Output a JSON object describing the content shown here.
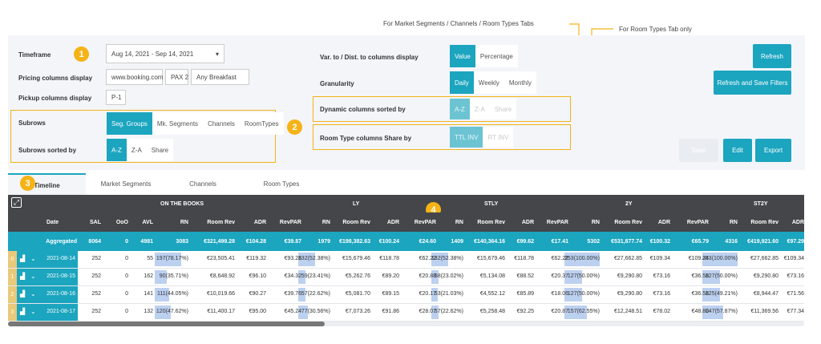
{
  "annotations": {
    "top": "For Market Segments / Channels / Room Types Tabs",
    "room_types_only": "For Room Types Tab only"
  },
  "markers": [
    "1",
    "2",
    "3",
    "4"
  ],
  "filters": {
    "timeframe_label": "Timeframe",
    "timeframe_value": "Aug 14, 2021 - Sep 14, 2021",
    "pricing_label": "Pricing columns display",
    "pricing_values": [
      "www.booking.com",
      "PAX 2",
      "Any Breakfast"
    ],
    "pickup_label": "Pickup columns display",
    "pickup_value": "P-1",
    "subrows_label": "Subrows",
    "subrows_options": [
      "Seg. Groups",
      "Mk. Segments",
      "Channels",
      "RoomTypes"
    ],
    "sorted_label": "Subrows sorted by",
    "sorted_options": [
      "A-Z",
      "Z-A",
      "Share"
    ],
    "var_label": "Var. to / Dist. to columns display",
    "var_options": [
      "Value",
      "Percentage"
    ],
    "gran_label": "Granularity",
    "gran_options": [
      "Daily",
      "Weekly",
      "Monthly"
    ],
    "dyn_label": "Dynamic columns sorted by",
    "dyn_options": [
      "A-Z",
      "Z-A",
      "Share"
    ],
    "rt_label": "Room Type columns Share by",
    "rt_options": [
      "TTL INV",
      "RT INV"
    ]
  },
  "buttons": {
    "refresh": "Refresh",
    "refresh_save": "Refresh and Save Filters",
    "disabled": "Save",
    "edit": "Edit",
    "export": "Export"
  },
  "tabs": [
    "Timeline",
    "Market Segments",
    "Channels",
    "Room Types"
  ],
  "groups": [
    "ON THE BOOKS",
    "LY",
    "STLY",
    "2Y",
    "ST2Y"
  ],
  "columns": [
    "Date",
    "SAL",
    "OoO",
    "AVL",
    "RN",
    "Room Rev",
    "ADR",
    "RevPAR",
    "RN",
    "Room Rev",
    "ADR",
    "RevPAR",
    "RN",
    "Room Rev",
    "ADR",
    "RevPAR",
    "RN",
    "Room Rev",
    "ADR",
    "RevPAR",
    "RN",
    "Room Rev",
    "ADR"
  ],
  "aggregated": [
    "Aggregated",
    "8064",
    "0",
    "4981",
    "3083",
    "€321,499.28",
    "€104.28",
    "€39.87",
    "1979",
    "€198,382.63",
    "€100.24",
    "€24.60",
    "1409",
    "€140,364.16",
    "€99.62",
    "€17.41",
    "5302",
    "€531,877.74",
    "€100.32",
    "€65.79",
    "4316",
    "€419,921.60",
    "€97.29"
  ],
  "rows": [
    {
      "idx": "0",
      "date": "2021-08-14",
      "cells": [
        "252",
        "0",
        "55",
        "197(78.17%)",
        "€23,505.41",
        "€119.32",
        "€93.28",
        "132(52.38%)",
        "€15,679.46",
        "€118.78",
        "€62.22",
        "132(52.38%)",
        "€15,679.46",
        "€118.78",
        "€62.22",
        "253(100.00%)",
        "€27,662.85",
        "€109.34",
        "€109.34",
        "253(100.00%)",
        "€27,662.85",
        "€109.34"
      ]
    },
    {
      "idx": "1",
      "date": "2021-08-15",
      "cells": [
        "252",
        "0",
        "162",
        "90(35.71%)",
        "€8,648.92",
        "€96.10",
        "€34.32",
        "59(23.41%)",
        "€5,262.76",
        "€89.20",
        "€20.88",
        "58(23.02%)",
        "€5,134.08",
        "€88.52",
        "€20.37",
        "127(50.00%)",
        "€9,290.80",
        "€73.16",
        "€36.58",
        "127(50.00%)",
        "€9,290.80",
        "€73.16"
      ]
    },
    {
      "idx": "2",
      "date": "2021-08-16",
      "cells": [
        "252",
        "0",
        "141",
        "111(44.05%)",
        "€10,019.66",
        "€90.27",
        "€39.76",
        "57(22.62%)",
        "€5,081.70",
        "€89.15",
        "€20.17",
        "53(21.03%)",
        "€4,552.12",
        "€85.89",
        "€18.06",
        "127(50.00%)",
        "€9,290.80",
        "€73.16",
        "€36.58",
        "125(49.21%)",
        "€8,944.47",
        "€71.56"
      ]
    },
    {
      "idx": "3",
      "date": "2021-08-17",
      "cells": [
        "252",
        "0",
        "132",
        "120(47.62%)",
        "€11,400.17",
        "€95.00",
        "€45.24",
        "77(30.56%)",
        "€7,073.26",
        "€91.86",
        "€28.07",
        "57(22.62%)",
        "€5,258.48",
        "€92.25",
        "€20.87",
        "157(62.55%)",
        "€12,248.51",
        "€78.02",
        "€48.80",
        "147(57.87%)",
        "€11,369.56",
        "€77.34"
      ]
    }
  ],
  "highlight_fractions": [
    [
      0.78,
      0.52,
      0.52,
      1.0,
      1.0
    ],
    [
      0.36,
      0.23,
      0.23,
      0.5,
      0.5
    ],
    [
      0.44,
      0.23,
      0.21,
      0.5,
      0.49
    ],
    [
      0.48,
      0.31,
      0.23,
      0.63,
      0.58
    ]
  ]
}
